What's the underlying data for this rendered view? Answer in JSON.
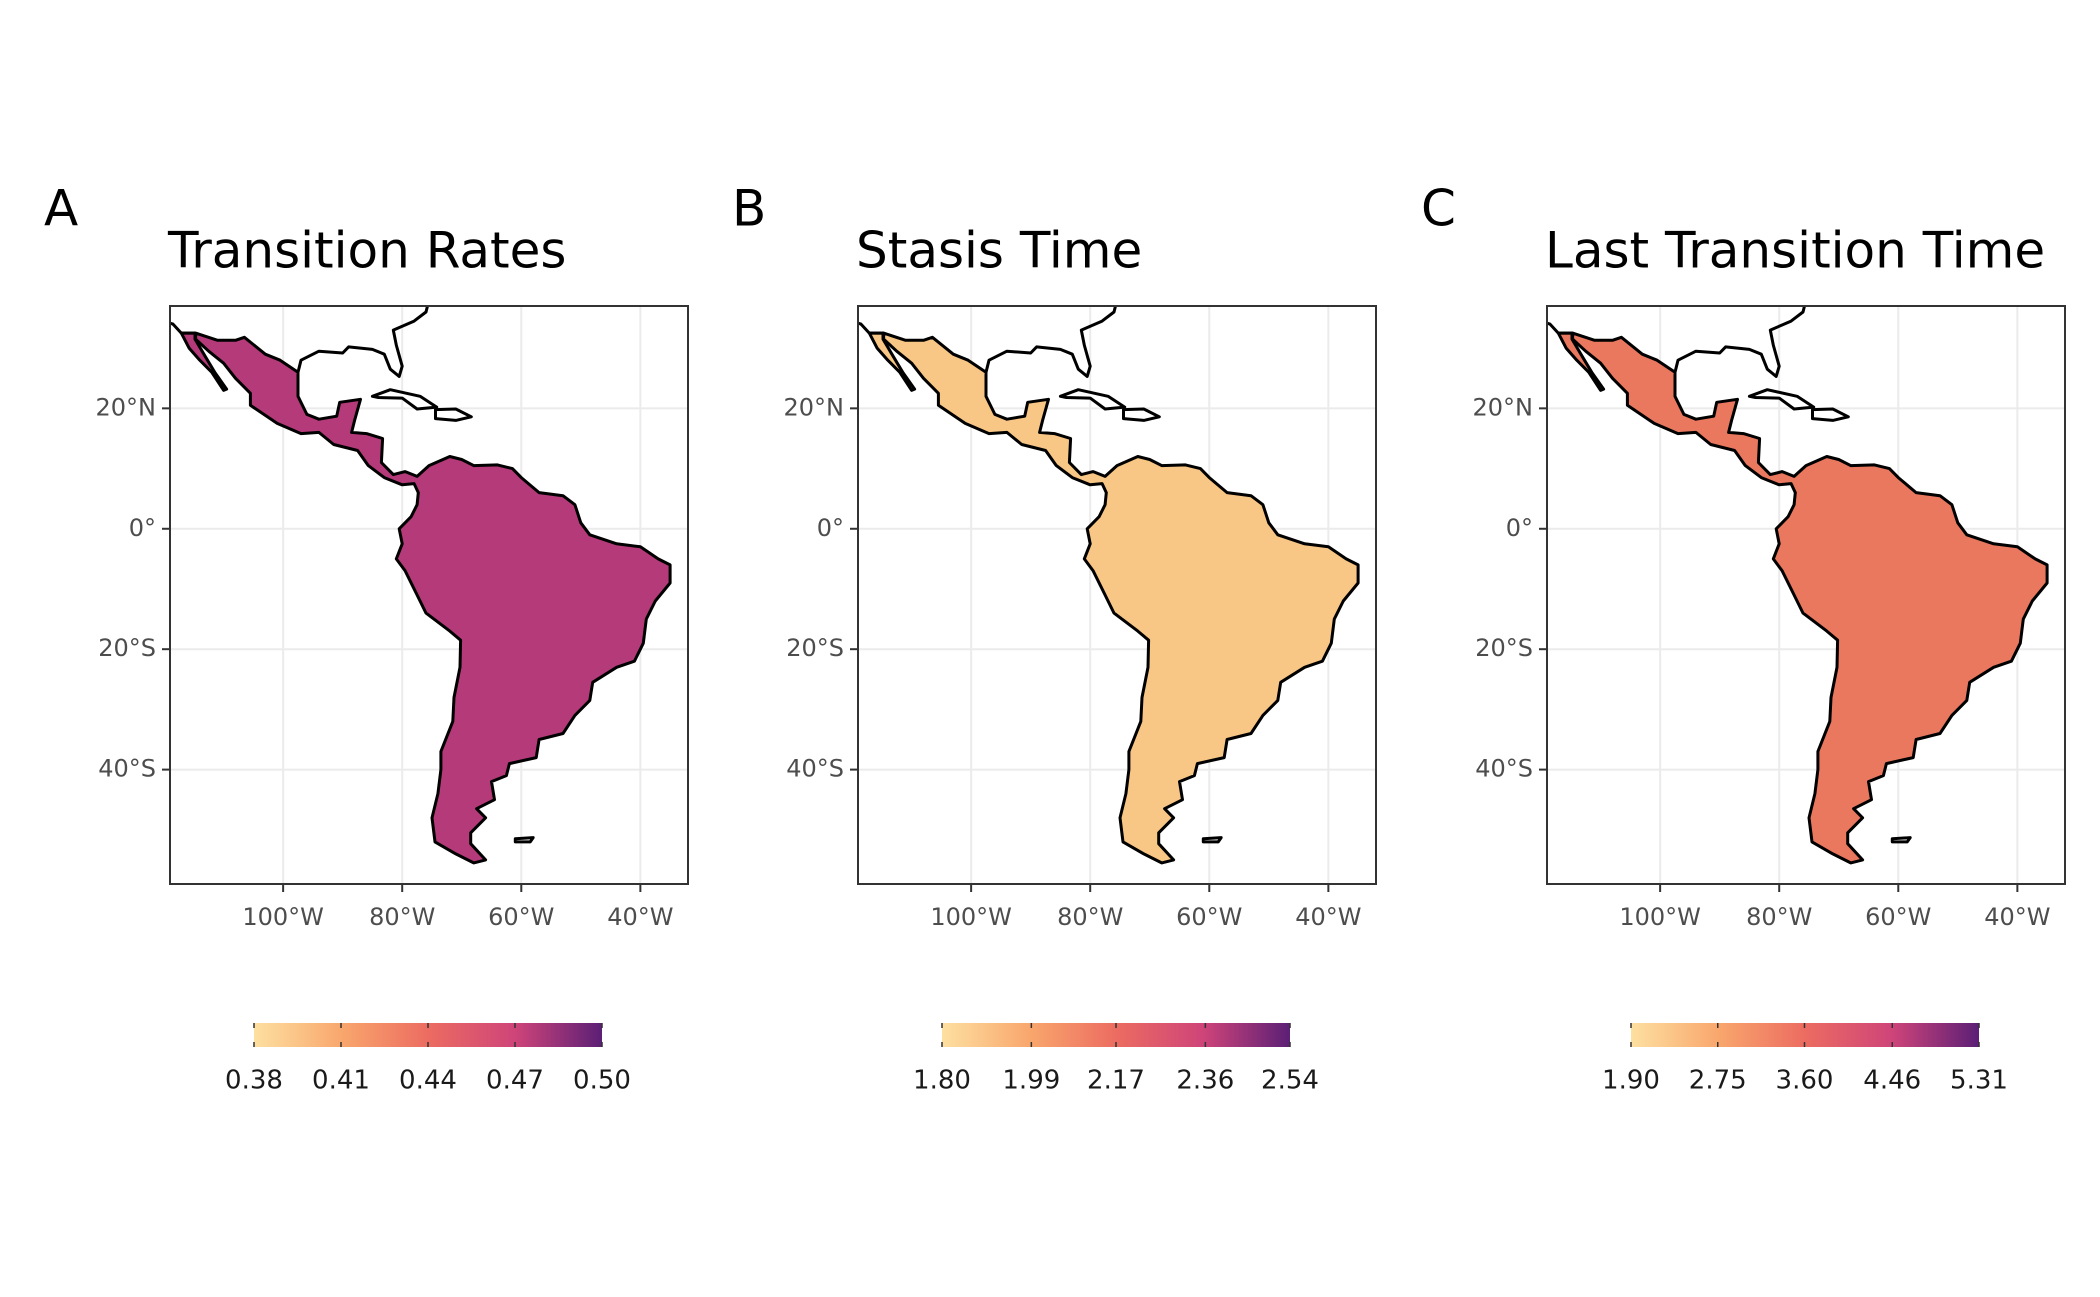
{
  "axes": {
    "xlim": [
      -119,
      -32
    ],
    "ylim": [
      -59,
      37
    ],
    "xticks": [
      {
        "value": -100,
        "label": "100°W"
      },
      {
        "value": -80,
        "label": "80°W"
      },
      {
        "value": -60,
        "label": "60°W"
      },
      {
        "value": -40,
        "label": "40°W"
      }
    ],
    "yticks": [
      {
        "value": 20,
        "label": "20°N"
      },
      {
        "value": 0,
        "label": "0°"
      },
      {
        "value": -20,
        "label": "20°S"
      },
      {
        "value": -40,
        "label": "40°S"
      }
    ],
    "grid": true
  },
  "panels": [
    {
      "label": "A",
      "title": "Transition Rates",
      "colorbar_ticks": [
        0.38,
        0.41,
        0.44,
        0.47,
        {
          "value": 0.5,
          "label": "0.50"
        }
      ]
    },
    {
      "label": "B",
      "title": "Stasis Time",
      "colorbar_ticks": [
        {
          "value": 1.8,
          "label": "1.80"
        },
        1.99,
        2.17,
        2.36,
        2.54
      ]
    },
    {
      "label": "C",
      "title": "Last Transition Time",
      "colorbar_ticks": [
        {
          "value": 1.9,
          "label": "1.90"
        },
        2.75,
        {
          "value": 3.6,
          "label": "3.60"
        },
        4.46,
        5.31
      ]
    }
  ]
}
